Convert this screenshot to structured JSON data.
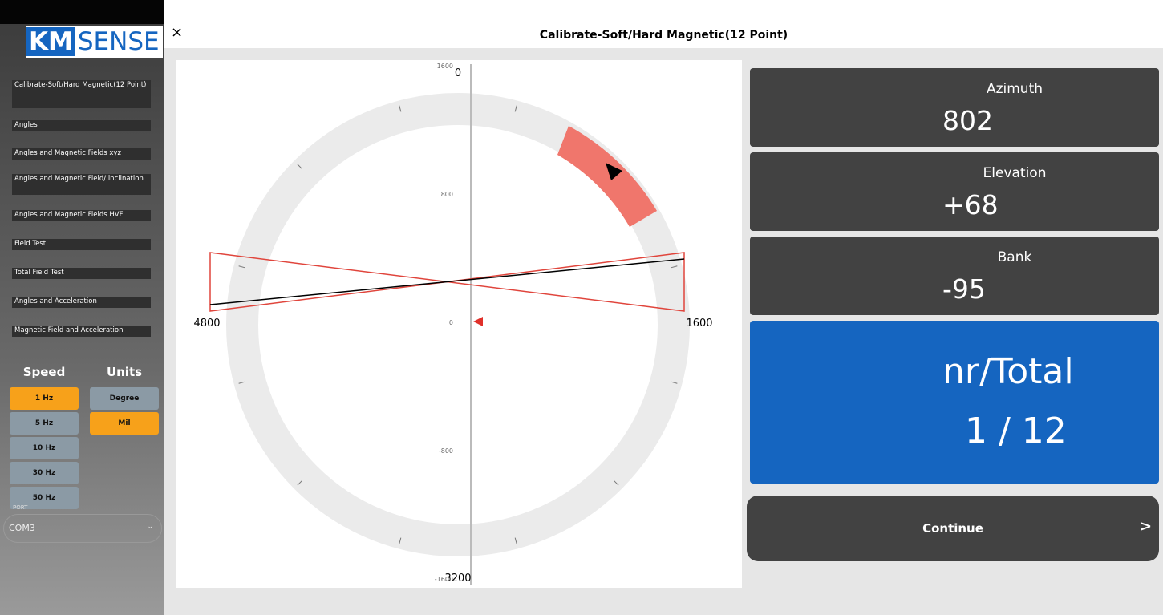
{
  "logo": {
    "km": "KM",
    "sense": "SENSE"
  },
  "header": {
    "close": "×",
    "title": "Calibrate-Soft/Hard Magnetic(12 Point)"
  },
  "menu": [
    "Calibrate-Soft/Hard Magnetic(12 Point)",
    "Angles",
    "Angles and Magnetic Fields xyz",
    "Angles and Magnetic Field/ inclination",
    "Angles and Magnetic Fields HVF",
    "Field Test",
    "Total Field Test",
    "Angles and Acceleration",
    "Magnetic Field and Acceleration"
  ],
  "speed": {
    "title": "Speed",
    "options": [
      "1 Hz",
      "5 Hz",
      "10 Hz",
      "30 Hz",
      "50 Hz"
    ]
  },
  "units": {
    "title": "Units",
    "options": [
      "Degree",
      "Mil"
    ]
  },
  "port": {
    "label": "PORT",
    "value": "COM3"
  },
  "dial": {
    "compass": {
      "top": "0",
      "right": "1600",
      "bottom": "3200",
      "left": "4800"
    },
    "scale": [
      "1600",
      "800",
      "0",
      "-800",
      "-1600"
    ]
  },
  "readouts": [
    {
      "label": "Azimuth",
      "value": "802"
    },
    {
      "label": "Elevation",
      "value": "+68"
    },
    {
      "label": "Bank",
      "value": "-95"
    }
  ],
  "counter": {
    "label": "nr/Total",
    "value": "1 / 12"
  },
  "continue": {
    "label": "Continue",
    "arrow": ">"
  }
}
